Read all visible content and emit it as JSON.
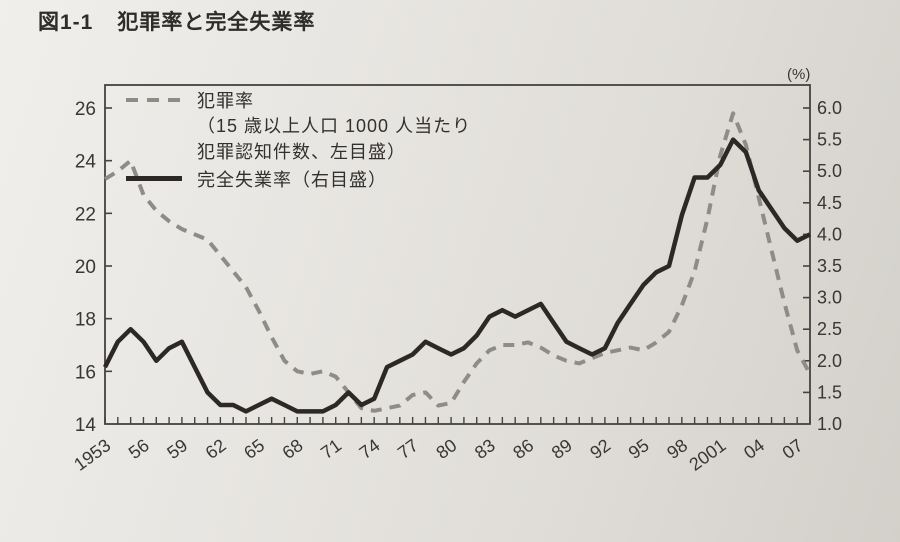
{
  "page": {
    "figure_label": "図1-1",
    "figure_title": "犯罪率と完全失業率"
  },
  "legend": {
    "crime_label": "犯罪率",
    "crime_note_line1": "（15 歳以上人口 1000 人当たり",
    "crime_note_line2": "犯罪認知件数、左目盛）",
    "unemployment_label": "完全失業率（右目盛）"
  },
  "chart_data": {
    "type": "line",
    "title": "犯罪率と完全失業率",
    "grid": false,
    "legend_position": "top-left-inside",
    "x_tick_labels": [
      "1953",
      "56",
      "59",
      "62",
      "65",
      "68",
      "71",
      "74",
      "77",
      "80",
      "83",
      "86",
      "89",
      "92",
      "95",
      "98",
      "2001",
      "04",
      "07"
    ],
    "x_years": [
      1953,
      1954,
      1955,
      1956,
      1957,
      1958,
      1959,
      1960,
      1961,
      1962,
      1963,
      1964,
      1965,
      1966,
      1967,
      1968,
      1969,
      1970,
      1971,
      1972,
      1973,
      1974,
      1975,
      1976,
      1977,
      1978,
      1979,
      1980,
      1981,
      1982,
      1983,
      1984,
      1985,
      1986,
      1987,
      1988,
      1989,
      1990,
      1991,
      1992,
      1993,
      1994,
      1995,
      1996,
      1997,
      1998,
      1999,
      2000,
      2001,
      2002,
      2003,
      2004,
      2005,
      2006,
      2007,
      2008
    ],
    "left_axis": {
      "label": "犯罪率（15歳以上人口1000人当たり犯罪認知件数、左目盛）",
      "min": 14,
      "max": 26,
      "tick_step": 2
    },
    "right_axis": {
      "label": "完全失業率（右目盛）",
      "unit": "(%)",
      "min": 1.0,
      "max": 6.0,
      "tick_step": 0.5
    },
    "series": [
      {
        "name": "犯罪率",
        "axis": "left",
        "style": "dashed",
        "color": "#8f8c88",
        "values": [
          23.3,
          23.6,
          24.0,
          22.7,
          22.1,
          21.7,
          21.4,
          21.2,
          21.0,
          20.4,
          19.8,
          19.2,
          18.3,
          17.3,
          16.4,
          16.0,
          15.9,
          16.0,
          15.8,
          15.2,
          14.6,
          14.5,
          14.6,
          14.7,
          15.1,
          15.2,
          14.7,
          14.8,
          15.6,
          16.3,
          16.8,
          17.0,
          17.0,
          17.1,
          16.9,
          16.6,
          16.4,
          16.3,
          16.5,
          16.7,
          16.8,
          16.9,
          16.8,
          17.1,
          17.5,
          18.5,
          19.8,
          21.8,
          24.2,
          25.8,
          24.6,
          22.6,
          20.6,
          18.6,
          16.8,
          15.9
        ]
      },
      {
        "name": "完全失業率",
        "axis": "right",
        "style": "solid",
        "color": "#2b2826",
        "values": [
          1.9,
          2.3,
          2.5,
          2.3,
          2.0,
          2.2,
          2.3,
          1.9,
          1.5,
          1.3,
          1.3,
          1.2,
          1.3,
          1.4,
          1.3,
          1.2,
          1.2,
          1.2,
          1.3,
          1.5,
          1.3,
          1.4,
          1.9,
          2.0,
          2.1,
          2.3,
          2.2,
          2.1,
          2.2,
          2.4,
          2.7,
          2.8,
          2.7,
          2.8,
          2.9,
          2.6,
          2.3,
          2.2,
          2.1,
          2.2,
          2.6,
          2.9,
          3.2,
          3.4,
          3.5,
          4.3,
          4.9,
          4.9,
          5.1,
          5.5,
          5.3,
          4.7,
          4.4,
          4.1,
          3.9,
          4.0
        ]
      }
    ]
  }
}
